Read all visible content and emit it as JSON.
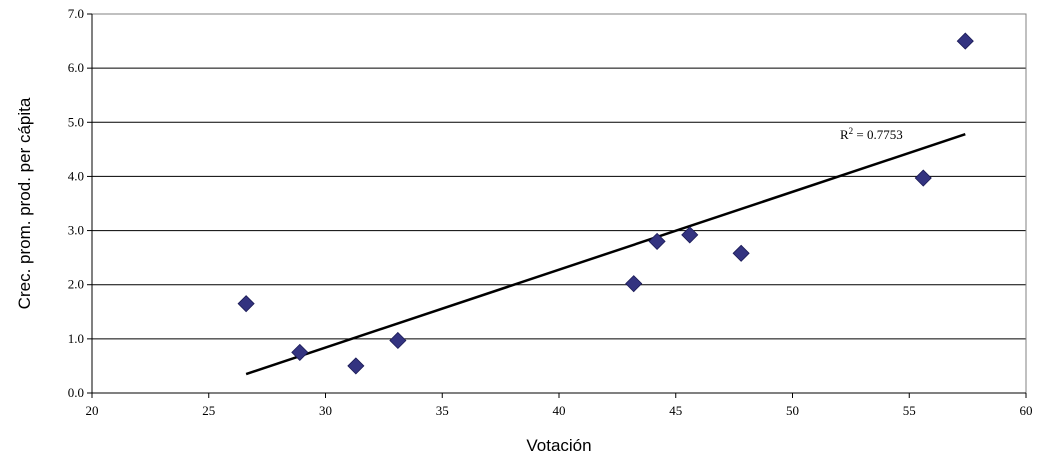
{
  "chart_data": {
    "type": "scatter",
    "title": "",
    "xlabel": "Votación",
    "ylabel": "Crec. prom. prod. per cápita",
    "xlim": [
      20,
      60
    ],
    "ylim": [
      0,
      7
    ],
    "x_ticks": [
      "20",
      "25",
      "30",
      "35",
      "40",
      "45",
      "50",
      "55",
      "60"
    ],
    "y_ticks": [
      "0.0",
      "1.0",
      "2.0",
      "3.0",
      "4.0",
      "5.0",
      "6.0",
      "7.0"
    ],
    "grid": "horizontal",
    "marker": "diamond",
    "marker_color": "#333380",
    "points": [
      {
        "x": 26.6,
        "y": 1.65
      },
      {
        "x": 28.9,
        "y": 0.75
      },
      {
        "x": 31.3,
        "y": 0.5
      },
      {
        "x": 33.1,
        "y": 0.97
      },
      {
        "x": 43.2,
        "y": 2.02
      },
      {
        "x": 44.2,
        "y": 2.8
      },
      {
        "x": 45.6,
        "y": 2.92
      },
      {
        "x": 47.8,
        "y": 2.58
      },
      {
        "x": 55.6,
        "y": 3.97
      },
      {
        "x": 57.4,
        "y": 6.5
      }
    ],
    "trendline": {
      "x": [
        26.6,
        57.4
      ],
      "y": [
        0.35,
        4.78
      ],
      "r2_prefix": "R",
      "r2_sup": "2",
      "r2_suffix": " = 0.7753"
    }
  }
}
